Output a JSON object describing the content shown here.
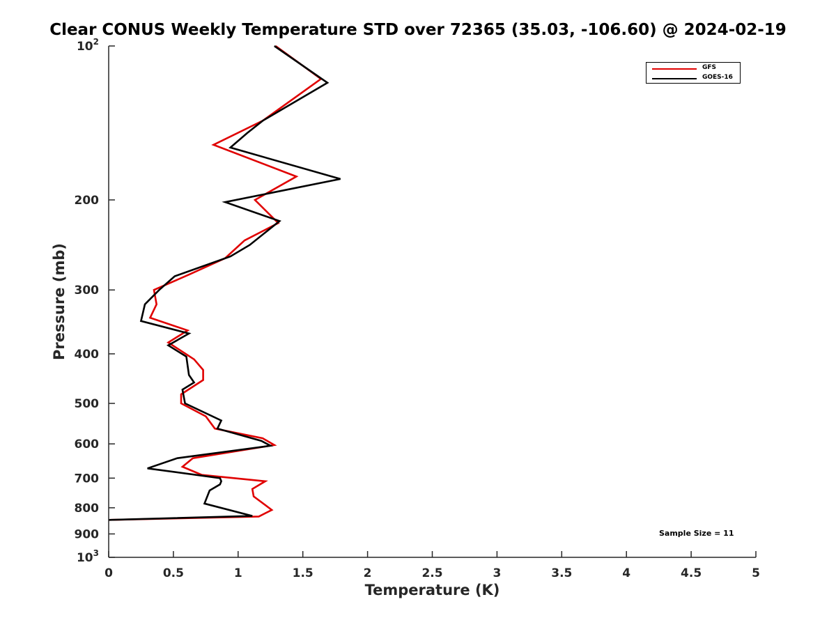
{
  "chart_data": {
    "type": "line",
    "title": "Clear CONUS Weekly Temperature STD over 72365 (35.03, -106.60) @ 2024-02-19",
    "xlabel": "Temperature (K)",
    "ylabel": "Pressure (mb)",
    "xlim": [
      0,
      5
    ],
    "ylim": [
      100,
      1000
    ],
    "yscale": "log",
    "y_reversed": true,
    "grid": false,
    "legend_position": "top-right",
    "x_ticks": [
      "0",
      "0.5",
      "1",
      "1.5",
      "2",
      "2.5",
      "3",
      "3.5",
      "4",
      "4.5",
      "5"
    ],
    "y_ticks": [
      {
        "value": 100,
        "label": "10",
        "sup": "2"
      },
      {
        "value": 200,
        "label": "200",
        "sup": ""
      },
      {
        "value": 300,
        "label": "300",
        "sup": ""
      },
      {
        "value": 400,
        "label": "400",
        "sup": ""
      },
      {
        "value": 500,
        "label": "500",
        "sup": ""
      },
      {
        "value": 600,
        "label": "600",
        "sup": ""
      },
      {
        "value": 700,
        "label": "700",
        "sup": ""
      },
      {
        "value": 800,
        "label": "800",
        "sup": ""
      },
      {
        "value": 900,
        "label": "900",
        "sup": ""
      },
      {
        "value": 1000,
        "label": "10",
        "sup": "3"
      }
    ],
    "series": [
      {
        "name": "GFS",
        "color": "#e00000",
        "points": [
          [
            1.29,
            100
          ],
          [
            1.64,
            116
          ],
          [
            1.19,
            140
          ],
          [
            0.81,
            156
          ],
          [
            1.45,
            180
          ],
          [
            1.13,
            200
          ],
          [
            1.31,
            222
          ],
          [
            1.05,
            240
          ],
          [
            0.9,
            260
          ],
          [
            0.62,
            280
          ],
          [
            0.35,
            300
          ],
          [
            0.37,
            320
          ],
          [
            0.32,
            340
          ],
          [
            0.61,
            360
          ],
          [
            0.46,
            380
          ],
          [
            0.66,
            410
          ],
          [
            0.73,
            430
          ],
          [
            0.73,
            450
          ],
          [
            0.56,
            480
          ],
          [
            0.56,
            500
          ],
          [
            0.75,
            530
          ],
          [
            0.82,
            560
          ],
          [
            1.19,
            585
          ],
          [
            1.28,
            603
          ],
          [
            0.65,
            640
          ],
          [
            0.57,
            665
          ],
          [
            0.72,
            690
          ],
          [
            1.21,
            710
          ],
          [
            1.11,
            735
          ],
          [
            1.12,
            760
          ],
          [
            1.26,
            808
          ],
          [
            1.16,
            832
          ],
          [
            0,
            845
          ]
        ]
      },
      {
        "name": "GOES-16",
        "color": "#000000",
        "points": [
          [
            1.28,
            100
          ],
          [
            1.69,
            118
          ],
          [
            1.19,
            140
          ],
          [
            1.07,
            148
          ],
          [
            0.94,
            158
          ],
          [
            1.79,
            182
          ],
          [
            0.9,
            202
          ],
          [
            1.32,
            220
          ],
          [
            1.09,
            245
          ],
          [
            0.94,
            258
          ],
          [
            0.51,
            282
          ],
          [
            0.39,
            300
          ],
          [
            0.28,
            320
          ],
          [
            0.25,
            345
          ],
          [
            0.62,
            365
          ],
          [
            0.46,
            385
          ],
          [
            0.6,
            405
          ],
          [
            0.62,
            440
          ],
          [
            0.66,
            455
          ],
          [
            0.57,
            470
          ],
          [
            0.59,
            500
          ],
          [
            0.87,
            540
          ],
          [
            0.84,
            560
          ],
          [
            1.18,
            592
          ],
          [
            1.25,
            605
          ],
          [
            0.53,
            640
          ],
          [
            0.3,
            670
          ],
          [
            0.86,
            700
          ],
          [
            0.87,
            710
          ],
          [
            0.86,
            720
          ],
          [
            0.78,
            740
          ],
          [
            0.74,
            785
          ],
          [
            1.11,
            830
          ],
          [
            0,
            845
          ]
        ]
      }
    ],
    "annotation": "Sample Size = 11"
  }
}
